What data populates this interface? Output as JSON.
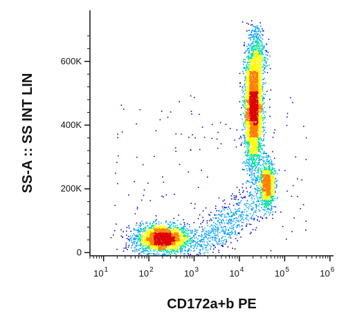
{
  "chart_data": {
    "type": "scatter",
    "subtype": "flow-cytometry-density-dot-plot",
    "xlabel": "CD172a+b PE",
    "ylabel": "SS-A :: SS INT LIN",
    "x_scale": "log",
    "x_ticks": [
      {
        "value": 10,
        "base": "10",
        "exp": "1"
      },
      {
        "value": 100,
        "base": "10",
        "exp": "2"
      },
      {
        "value": 1000,
        "base": "10",
        "exp": "3"
      },
      {
        "value": 10000,
        "base": "10",
        "exp": "4"
      },
      {
        "value": 100000,
        "base": "10",
        "exp": "5"
      },
      {
        "value": 1000000,
        "base": "10",
        "exp": "6"
      }
    ],
    "y_ticks": [
      {
        "value": 0,
        "label": "0"
      },
      {
        "value": 200000,
        "label": "200K"
      },
      {
        "value": 400000,
        "label": "400K"
      },
      {
        "value": 600000,
        "label": "600K"
      }
    ],
    "xlim": [
      5,
      1200000
    ],
    "ylim": [
      -10000,
      760000
    ],
    "grid": false,
    "legend": "none",
    "color_scale": [
      "#0000cc",
      "#00a0ff",
      "#00e0a0",
      "#ffff00",
      "#ff8000",
      "#dd0000"
    ],
    "populations": [
      {
        "x_center": 190,
        "y_center": 45000,
        "x_spread_log": 0.3,
        "y_spread": 22000,
        "tilt": 0,
        "count": 2200
      },
      {
        "x_center": 20000,
        "y_center": 450000,
        "x_spread_log": 0.1,
        "y_spread": 95000,
        "tilt": 0,
        "count": 3200
      },
      {
        "x_center": 40000,
        "y_center": 215000,
        "x_spread_log": 0.08,
        "y_spread": 38000,
        "tilt": 0,
        "count": 900
      },
      {
        "x_center": 4000,
        "y_center": 80000,
        "x_spread_log": 0.55,
        "y_spread": 40000,
        "tilt": 50000,
        "count": 700
      },
      {
        "x_center": 25000,
        "y_center": 620000,
        "x_spread_log": 0.1,
        "y_spread": 50000,
        "tilt": 0,
        "count": 350
      }
    ]
  }
}
